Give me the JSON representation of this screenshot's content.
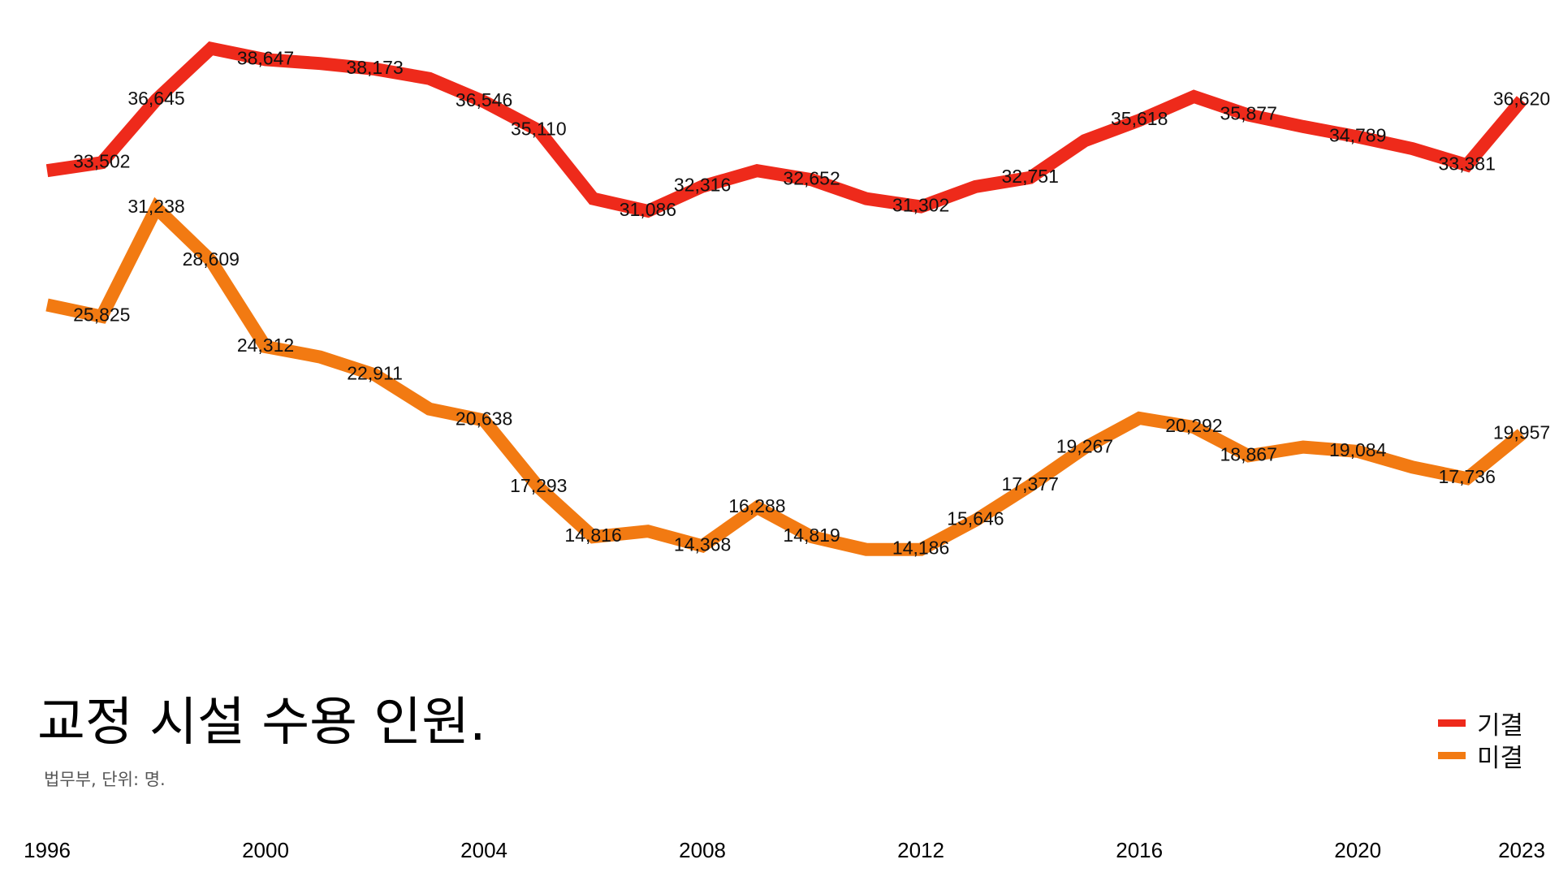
{
  "chart_data": {
    "type": "line",
    "title": "교정 시설 수용 인원.",
    "subtitle": "법무부, 단위: 명.",
    "x": [
      1996,
      1997,
      1998,
      1999,
      2000,
      2001,
      2002,
      2003,
      2004,
      2005,
      2006,
      2007,
      2008,
      2009,
      2010,
      2011,
      2012,
      2013,
      2014,
      2015,
      2016,
      2017,
      2018,
      2019,
      2020,
      2021,
      2022,
      2023
    ],
    "xticks": [
      "1996",
      "2000",
      "2004",
      "2008",
      "2012",
      "2016",
      "2020",
      "2023"
    ],
    "ylim": [
      10000,
      40000
    ],
    "grid": false,
    "legend": "bottom-right",
    "series": [
      {
        "name": "기결",
        "color": "#ee2a1b",
        "values": [
          33100,
          33502,
          36645,
          39200,
          38647,
          38450,
          38173,
          37700,
          36546,
          35110,
          31700,
          31086,
          32316,
          33100,
          32652,
          31700,
          31302,
          32300,
          32751,
          34600,
          35618,
          36800,
          35877,
          35300,
          34789,
          34200,
          33381,
          36620
        ],
        "labels": [
          null,
          "33,502",
          "36,645",
          null,
          "38,647",
          null,
          "38,173",
          null,
          "36,546",
          "35,110",
          null,
          "31,086",
          "32,316",
          null,
          "32,652",
          null,
          "31,302",
          null,
          "32,751",
          null,
          "35,618",
          null,
          "35,877",
          null,
          "34,789",
          null,
          "33,381",
          "36,620"
        ]
      },
      {
        "name": "미결",
        "color": "#f27a12",
        "values": [
          26400,
          25825,
          31238,
          28609,
          24312,
          23800,
          22911,
          21200,
          20638,
          17293,
          14816,
          15100,
          14368,
          16288,
          14819,
          14186,
          14186,
          15646,
          17377,
          19267,
          20745,
          20292,
          18867,
          19300,
          19084,
          18300,
          17736,
          19957
        ],
        "labels": [
          null,
          "25,825",
          "31,238",
          "28,609",
          "24,312",
          null,
          "22,911",
          null,
          "20,638",
          "17,293",
          "14,816",
          null,
          "14,368",
          "16,288",
          "14,819",
          null,
          "14,186",
          "15,646",
          "17,377",
          "19,267",
          null,
          "20,292",
          "18,867",
          null,
          "19,084",
          null,
          "17,736",
          "19,957"
        ]
      }
    ]
  }
}
